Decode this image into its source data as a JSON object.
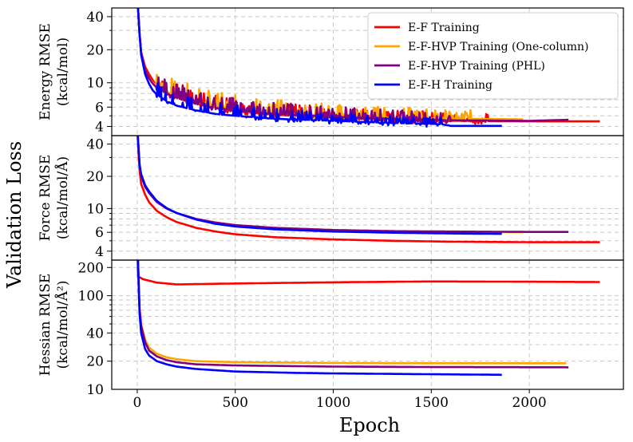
{
  "chart_data": {
    "type": "line",
    "title": "",
    "xlabel": "Epoch",
    "shared_ylabel": "Validation Loss",
    "xlim": [
      -130,
      2480
    ],
    "xticks": [
      0,
      500,
      1000,
      1500,
      2000
    ],
    "xticklabels": [
      "0",
      "500",
      "1000",
      "1500",
      "2000"
    ],
    "grid": true,
    "legend": {
      "location": "top-right of top panel",
      "entries": [
        {
          "label": "E-F Training",
          "color": "#ff0000"
        },
        {
          "label": "E-F-HVP Training (One-column)",
          "color": "#ffa500"
        },
        {
          "label": "E-F-HVP Training (PHL)",
          "color": "#800080"
        },
        {
          "label": "E-F-H Training",
          "color": "#0000ff"
        }
      ]
    },
    "panels": [
      {
        "ylabel_lines": [
          "Energy RMSE",
          "(kcal/mol)"
        ],
        "yscale": "log",
        "ylim": [
          3.3,
          48
        ],
        "yticks": [
          4,
          6,
          10,
          20,
          40
        ],
        "yticklabels": [
          "4",
          "6",
          "10",
          "20",
          "40"
        ],
        "series": [
          {
            "name": "E-F Training",
            "color": "#ff0000",
            "end_epoch": 2360,
            "points": [
              [
                5,
                48
              ],
              [
                10,
                30
              ],
              [
                20,
                19
              ],
              [
                40,
                14
              ],
              [
                60,
                12
              ],
              [
                80,
                10.5
              ],
              [
                100,
                9.2
              ],
              [
                150,
                8
              ],
              [
                200,
                7.5
              ],
              [
                300,
                6.5
              ],
              [
                400,
                5.9
              ],
              [
                500,
                5.5
              ],
              [
                700,
                5.1
              ],
              [
                1000,
                4.8
              ],
              [
                1300,
                4.6
              ],
              [
                1600,
                4.5
              ],
              [
                2000,
                4.45
              ],
              [
                2360,
                4.45
              ]
            ],
            "noise": {
              "start": 100,
              "end": 1800,
              "amp": 0.3
            }
          },
          {
            "name": "E-F-HVP Training (One-column)",
            "color": "#ffa500",
            "end_epoch": 1970,
            "points": [
              [
                5,
                48
              ],
              [
                10,
                30
              ],
              [
                20,
                19
              ],
              [
                40,
                13
              ],
              [
                60,
                11
              ],
              [
                80,
                10
              ],
              [
                100,
                9.2
              ],
              [
                150,
                8.3
              ],
              [
                200,
                7.6
              ],
              [
                300,
                6.7
              ],
              [
                400,
                6.1
              ],
              [
                500,
                5.7
              ],
              [
                700,
                5.3
              ],
              [
                1000,
                5
              ],
              [
                1300,
                4.8
              ],
              [
                1600,
                4.7
              ],
              [
                1970,
                4.65
              ]
            ],
            "noise": {
              "start": 100,
              "end": 1700,
              "amp": 0.35
            }
          },
          {
            "name": "E-F-HVP Training (PHL)",
            "color": "#800080",
            "end_epoch": 2200,
            "points": [
              [
                5,
                48
              ],
              [
                10,
                30
              ],
              [
                20,
                19
              ],
              [
                40,
                13
              ],
              [
                60,
                11
              ],
              [
                80,
                9.8
              ],
              [
                100,
                9
              ],
              [
                150,
                8
              ],
              [
                200,
                7.3
              ],
              [
                300,
                6.4
              ],
              [
                400,
                5.9
              ],
              [
                500,
                5.6
              ],
              [
                700,
                5.2
              ],
              [
                1000,
                4.9
              ],
              [
                1300,
                4.7
              ],
              [
                1600,
                4.55
              ],
              [
                2000,
                4.5
              ],
              [
                2200,
                4.6
              ]
            ],
            "noise": {
              "start": 100,
              "end": 1600,
              "amp": 0.3
            }
          },
          {
            "name": "E-F-H Training",
            "color": "#0000ff",
            "end_epoch": 1860,
            "points": [
              [
                5,
                48
              ],
              [
                10,
                30
              ],
              [
                20,
                18
              ],
              [
                40,
                12
              ],
              [
                60,
                9.8
              ],
              [
                80,
                8.5
              ],
              [
                100,
                7.8
              ],
              [
                150,
                6.8
              ],
              [
                200,
                6.2
              ],
              [
                300,
                5.6
              ],
              [
                400,
                5.2
              ],
              [
                500,
                5
              ],
              [
                700,
                4.7
              ],
              [
                1000,
                4.5
              ],
              [
                1300,
                4.3
              ],
              [
                1550,
                4.2
              ],
              [
                1600,
                4.05
              ],
              [
                1860,
                4.05
              ]
            ],
            "noise": {
              "start": 100,
              "end": 1560,
              "amp": 0.25
            }
          }
        ]
      },
      {
        "ylabel_lines": [
          "Force RMSE",
          "(kcal/mol/Å)"
        ],
        "yscale": "log",
        "ylim": [
          3.3,
          48
        ],
        "yticks": [
          4,
          6,
          10,
          20,
          40
        ],
        "yticklabels": [
          "4",
          "6",
          "10",
          "20",
          "40"
        ],
        "series": [
          {
            "name": "E-F Training",
            "color": "#ff0000",
            "end_epoch": 2360,
            "points": [
              [
                5,
                40
              ],
              [
                10,
                24
              ],
              [
                20,
                17
              ],
              [
                40,
                13.5
              ],
              [
                60,
                11.5
              ],
              [
                100,
                9.5
              ],
              [
                150,
                8.3
              ],
              [
                200,
                7.5
              ],
              [
                300,
                6.6
              ],
              [
                400,
                6.1
              ],
              [
                500,
                5.75
              ],
              [
                700,
                5.4
              ],
              [
                1000,
                5.15
              ],
              [
                1300,
                5
              ],
              [
                1600,
                4.9
              ],
              [
                2000,
                4.85
              ],
              [
                2360,
                4.85
              ]
            ]
          },
          {
            "name": "E-F-HVP Training (One-column)",
            "color": "#ffa500",
            "end_epoch": 1970,
            "points": [
              [
                5,
                45
              ],
              [
                10,
                27
              ],
              [
                20,
                20
              ],
              [
                40,
                16
              ],
              [
                60,
                14
              ],
              [
                100,
                11.5
              ],
              [
                150,
                10
              ],
              [
                200,
                9.1
              ],
              [
                300,
                8
              ],
              [
                400,
                7.4
              ],
              [
                500,
                7
              ],
              [
                700,
                6.6
              ],
              [
                1000,
                6.3
              ],
              [
                1300,
                6.15
              ],
              [
                1600,
                6.05
              ],
              [
                1970,
                6
              ]
            ]
          },
          {
            "name": "E-F-HVP Training (PHL)",
            "color": "#800080",
            "end_epoch": 2200,
            "points": [
              [
                5,
                45
              ],
              [
                10,
                27
              ],
              [
                20,
                20
              ],
              [
                40,
                16
              ],
              [
                60,
                14
              ],
              [
                100,
                11.5
              ],
              [
                150,
                10
              ],
              [
                200,
                9.1
              ],
              [
                300,
                8
              ],
              [
                400,
                7.4
              ],
              [
                500,
                7
              ],
              [
                700,
                6.6
              ],
              [
                1000,
                6.3
              ],
              [
                1300,
                6.15
              ],
              [
                1600,
                6.1
              ],
              [
                2000,
                6.05
              ],
              [
                2200,
                6.05
              ]
            ]
          },
          {
            "name": "E-F-H Training",
            "color": "#0000ff",
            "end_epoch": 1860,
            "points": [
              [
                5,
                45
              ],
              [
                10,
                27
              ],
              [
                20,
                21
              ],
              [
                40,
                16.5
              ],
              [
                60,
                14.5
              ],
              [
                100,
                11.8
              ],
              [
                150,
                10.1
              ],
              [
                200,
                9.1
              ],
              [
                300,
                7.9
              ],
              [
                400,
                7.2
              ],
              [
                500,
                6.8
              ],
              [
                700,
                6.4
              ],
              [
                1000,
                6.1
              ],
              [
                1300,
                5.95
              ],
              [
                1600,
                5.85
              ],
              [
                1860,
                5.8
              ]
            ]
          }
        ]
      },
      {
        "ylabel_lines": [
          "Hessian RMSE",
          "(kcal/mol/Å²)"
        ],
        "yscale": "log",
        "ylim": [
          10,
          240
        ],
        "yticks": [
          10,
          20,
          40,
          100,
          200
        ],
        "yticklabels": [
          "10",
          "20",
          "40",
          "100",
          "200"
        ],
        "series": [
          {
            "name": "E-F Training",
            "color": "#ff0000",
            "end_epoch": 2360,
            "points": [
              [
                5,
                160
              ],
              [
                30,
                150
              ],
              [
                100,
                138
              ],
              [
                200,
                132
              ],
              [
                300,
                133
              ],
              [
                500,
                135
              ],
              [
                1000,
                139
              ],
              [
                1500,
                142
              ],
              [
                2000,
                141
              ],
              [
                2360,
                140
              ]
            ]
          },
          {
            "name": "E-F-HVP Training (One-column)",
            "color": "#ffa500",
            "end_epoch": 2190,
            "points": [
              [
                5,
                240
              ],
              [
                10,
                80
              ],
              [
                20,
                50
              ],
              [
                40,
                34
              ],
              [
                60,
                28
              ],
              [
                100,
                24
              ],
              [
                150,
                22
              ],
              [
                200,
                21
              ],
              [
                300,
                20
              ],
              [
                500,
                19.5
              ],
              [
                1000,
                19.1
              ],
              [
                1500,
                19
              ],
              [
                2190,
                19
              ]
            ]
          },
          {
            "name": "E-F-HVP Training (PHL)",
            "color": "#800080",
            "end_epoch": 2200,
            "points": [
              [
                5,
                240
              ],
              [
                10,
                78
              ],
              [
                20,
                48
              ],
              [
                40,
                32
              ],
              [
                60,
                26
              ],
              [
                100,
                22.5
              ],
              [
                150,
                20.5
              ],
              [
                200,
                19.5
              ],
              [
                300,
                18.5
              ],
              [
                500,
                18
              ],
              [
                1000,
                17.5
              ],
              [
                1500,
                17.3
              ],
              [
                2200,
                17.2
              ]
            ]
          },
          {
            "name": "E-F-H Training",
            "color": "#0000ff",
            "end_epoch": 1860,
            "points": [
              [
                5,
                240
              ],
              [
                10,
                70
              ],
              [
                20,
                40
              ],
              [
                40,
                27
              ],
              [
                60,
                23
              ],
              [
                100,
                20
              ],
              [
                150,
                18.5
              ],
              [
                200,
                17.5
              ],
              [
                300,
                16.5
              ],
              [
                500,
                15.5
              ],
              [
                800,
                15
              ],
              [
                1000,
                14.8
              ],
              [
                1500,
                14.5
              ],
              [
                1860,
                14.3
              ]
            ]
          }
        ]
      }
    ]
  }
}
